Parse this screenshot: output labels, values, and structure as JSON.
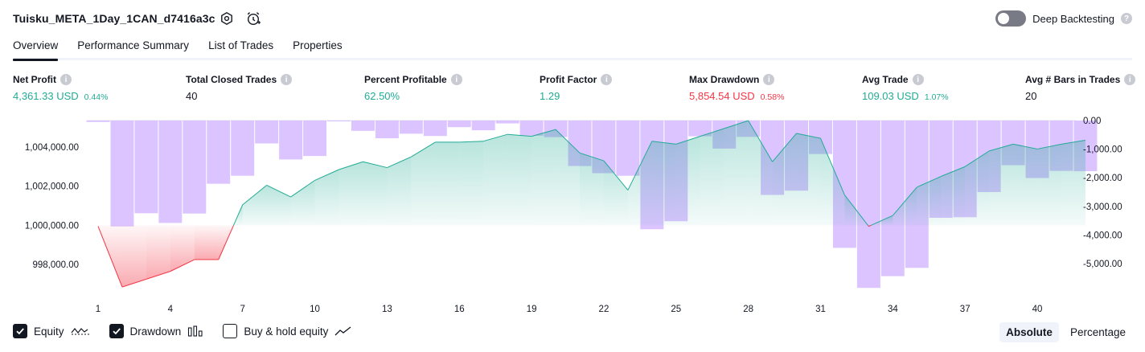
{
  "header": {
    "strategy_name": "Tuisku_META_1Day_1CAN_d7416a3c",
    "settings_icon": "settings-hex-icon",
    "alert_icon": "alarm-clock-plus-icon",
    "deep_backtesting_label": "Deep Backtesting",
    "deep_backtesting_enabled": false
  },
  "tabs": [
    {
      "label": "Overview",
      "active": true
    },
    {
      "label": "Performance Summary",
      "active": false
    },
    {
      "label": "List of Trades",
      "active": false
    },
    {
      "label": "Properties",
      "active": false
    }
  ],
  "metrics": [
    {
      "label": "Net Profit",
      "value": "4,361.33 USD",
      "pct": "0.44%",
      "color": "green"
    },
    {
      "label": "Total Closed Trades",
      "value": "40",
      "pct": "",
      "color": "dark"
    },
    {
      "label": "Percent Profitable",
      "value": "62.50%",
      "pct": "",
      "color": "green"
    },
    {
      "label": "Profit Factor",
      "value": "1.29",
      "pct": "",
      "color": "green"
    },
    {
      "label": "Max Drawdown",
      "value": "5,854.54 USD",
      "pct": "0.58%",
      "color": "red"
    },
    {
      "label": "Avg Trade",
      "value": "109.03 USD",
      "pct": "1.07%",
      "color": "green"
    },
    {
      "label": "Avg # Bars in Trades",
      "value": "20",
      "pct": "",
      "color": "dark"
    }
  ],
  "chart_data": {
    "type": "line",
    "x_ticks": [
      "1",
      "4",
      "7",
      "10",
      "13",
      "16",
      "19",
      "22",
      "25",
      "28",
      "31",
      "34",
      "37",
      "40"
    ],
    "y_left_ticks": [
      "1,004,000.00",
      "1,002,000.00",
      "1,000,000.00",
      "998,000.00"
    ],
    "y_left_range": [
      996800,
      1005350
    ],
    "y_right_ticks": [
      "0.00",
      "-1,000.00",
      "-2,000.00",
      "-3,000.00",
      "-4,000.00",
      "-5,000.00"
    ],
    "y_right_range": [
      -5900,
      0
    ],
    "baseline": 1000000,
    "series": [
      {
        "name": "Equity",
        "x": [
          1,
          2,
          3,
          4,
          5,
          6,
          7,
          8,
          9,
          10,
          11,
          12,
          13,
          14,
          15,
          16,
          17,
          18,
          19,
          20,
          21,
          22,
          23,
          24,
          25,
          26,
          27,
          28,
          29,
          30,
          31,
          32,
          33,
          34,
          35,
          36,
          37,
          38,
          39,
          40,
          41,
          42
        ],
        "values": [
          999950,
          996850,
          997250,
          997650,
          998250,
          998250,
          1001050,
          1002050,
          1001450,
          1002300,
          1002850,
          1003250,
          1002950,
          1003500,
          1004250,
          1004250,
          1004300,
          1004650,
          1004550,
          1004900,
          1003700,
          1003300,
          1001800,
          1004300,
          1004150,
          1004550,
          1004950,
          1005350,
          1003250,
          1004700,
          1004450,
          1001550,
          999950,
          1000500,
          1001950,
          1002500,
          1003000,
          1003800,
          1004150,
          1003900,
          1004150,
          1004350
        ]
      },
      {
        "name": "Drawdown",
        "x": [
          1,
          2,
          3,
          4,
          5,
          6,
          7,
          8,
          9,
          10,
          11,
          12,
          13,
          14,
          15,
          16,
          17,
          18,
          19,
          20,
          21,
          22,
          23,
          24,
          25,
          26,
          27,
          28,
          29,
          30,
          31,
          32,
          33,
          34,
          35,
          36,
          37,
          38,
          39,
          40,
          41,
          42
        ],
        "values": [
          -50,
          -3700,
          -3240,
          -3580,
          -3250,
          -2210,
          -1930,
          -800,
          -1360,
          -1240,
          0,
          -360,
          -620,
          -460,
          -540,
          -230,
          -340,
          -100,
          -530,
          -580,
          -1590,
          -1840,
          -1930,
          -3800,
          -3520,
          -550,
          -980,
          -570,
          -2600,
          -2450,
          -1170,
          -4450,
          -5850,
          -5440,
          -5150,
          -3400,
          -3380,
          -2500,
          -1560,
          -2010,
          -1760,
          -1770
        ]
      }
    ],
    "colors": {
      "equity_line": "#22ab94",
      "equity_fill": "#22ab94",
      "loss_line": "#f23645",
      "loss_fill": "#f23645",
      "drawdown_bar": "#d1b4ff"
    }
  },
  "legend": [
    {
      "label": "Equity",
      "checked": true,
      "icon": "equity-wave-icon"
    },
    {
      "label": "Drawdown",
      "checked": true,
      "icon": "drawdown-bars-icon"
    },
    {
      "label": "Buy & hold equity",
      "checked": false,
      "icon": "buy-hold-line-icon"
    }
  ],
  "mode_buttons": [
    {
      "label": "Absolute",
      "active": true
    },
    {
      "label": "Percentage",
      "active": false
    }
  ]
}
